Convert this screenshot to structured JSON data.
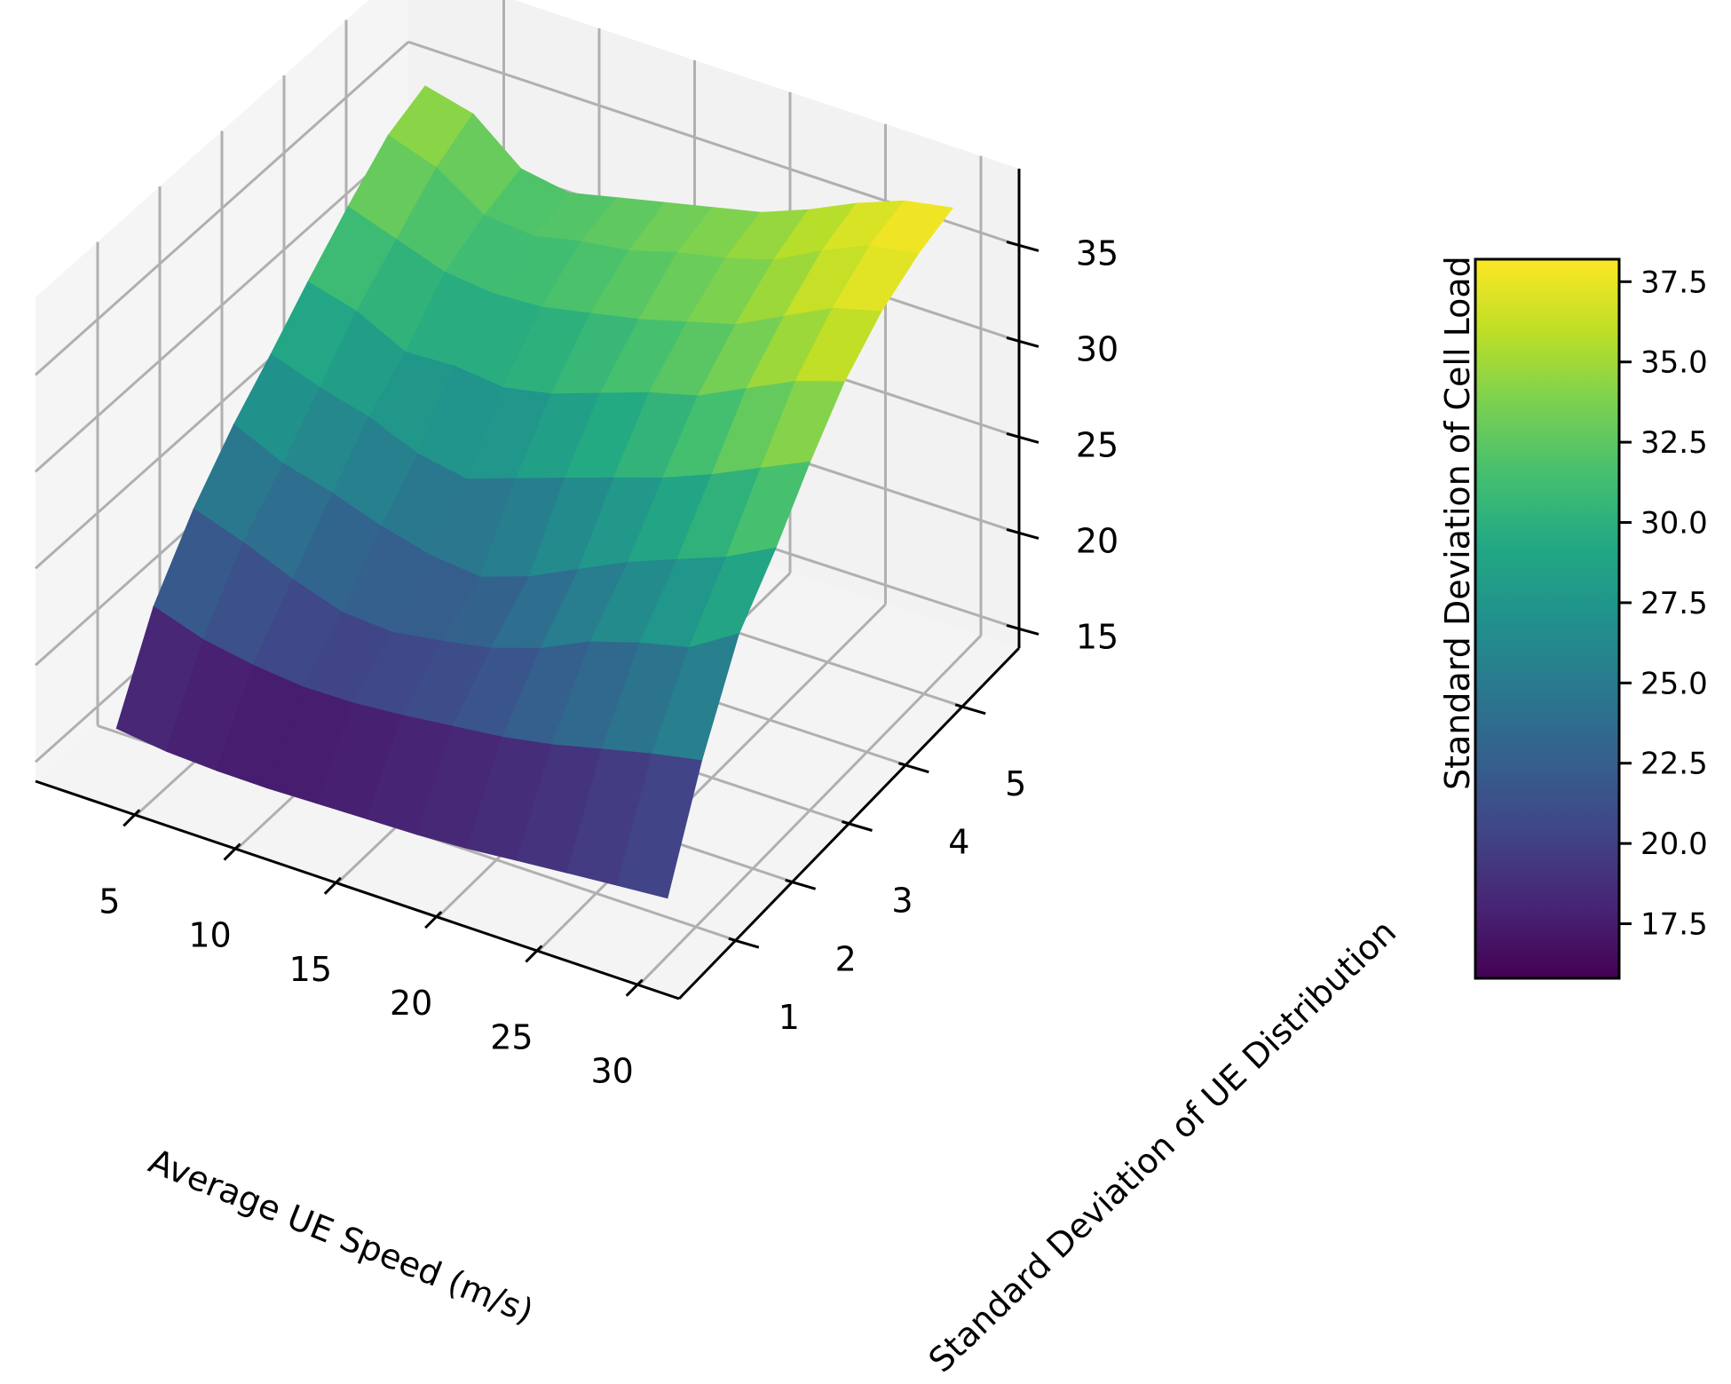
{
  "chart_data": {
    "type": "surface3d",
    "title": "",
    "xlabel": "Average UE Speed (m/s)",
    "ylabel": "Standard Deviation of UE Distribution",
    "zlabel": "Standard Deviation of Cell Load",
    "x_ticks": [
      "5",
      "10",
      "15",
      "20",
      "25",
      "30"
    ],
    "y_ticks": [
      "1",
      "2",
      "3",
      "4",
      "5"
    ],
    "z_ticks": [
      "15",
      "20",
      "25",
      "30",
      "35"
    ],
    "xlim": [
      0,
      32
    ],
    "ylim": [
      0,
      6
    ],
    "zlim": [
      14,
      39
    ],
    "colormap": "viridis",
    "colorbar": {
      "label": "Standard Deviation of Cell Load",
      "ticks": [
        "17.5",
        "20.0",
        "22.5",
        "25.0",
        "27.5",
        "30.0",
        "32.5",
        "35.0",
        "37.5"
      ],
      "range": [
        15.8,
        38.2
      ]
    },
    "x": [
      2.5,
      5,
      7.5,
      10,
      12.5,
      15,
      17.5,
      20,
      22.5,
      25,
      27.5,
      30
    ],
    "y": [
      0.5,
      1.1,
      1.75,
      2.4,
      3.0,
      3.6,
      4.25,
      4.9,
      5.5
    ],
    "z": [
      [
        16.2,
        15.9,
        15.8,
        15.8,
        15.9,
        16.0,
        16.1,
        16.3,
        16.6,
        16.9,
        17.2,
        17.5
      ],
      [
        20.8,
        20.0,
        19.6,
        19.4,
        19.5,
        19.8,
        20.2,
        20.6,
        21.2,
        22.0,
        22.8,
        23.5
      ],
      [
        24.0,
        23.2,
        22.2,
        21.4,
        21.3,
        21.8,
        22.4,
        23.4,
        24.8,
        25.8,
        26.6,
        28.5
      ],
      [
        26.5,
        25.4,
        24.8,
        24.0,
        23.4,
        23.2,
        24.2,
        25.6,
        27.0,
        28.2,
        29.4,
        31.0
      ],
      [
        28.4,
        27.6,
        27.0,
        26.0,
        25.6,
        26.6,
        27.6,
        28.6,
        29.6,
        30.8,
        32.2,
        33.6
      ],
      [
        30.4,
        29.8,
        28.6,
        28.8,
        28.6,
        29.2,
        30.2,
        31.2,
        32.0,
        33.4,
        34.8,
        35.8
      ],
      [
        32.4,
        31.6,
        30.8,
        30.6,
        30.8,
        31.4,
        32.0,
        32.8,
        33.6,
        35.0,
        36.4,
        37.2
      ],
      [
        34.2,
        33.4,
        31.8,
        31.6,
        32.2,
        32.6,
        33.4,
        34.0,
        34.8,
        36.2,
        37.4,
        37.9
      ],
      [
        35.0,
        34.4,
        32.4,
        32.0,
        32.6,
        33.2,
        33.8,
        34.4,
        35.4,
        36.6,
        37.6,
        38.1
      ]
    ],
    "grid": true,
    "legend": null
  },
  "labels": {
    "xlabel": "Average UE Speed (m/s)",
    "ylabel": "Standard Deviation of UE Distribution",
    "zlabel": "Standard Deviation of Cell Load",
    "colorbar_label": "Standard Deviation of Cell Load"
  },
  "colors": {
    "pane_left": "#f5f5f5",
    "pane_back": "#f2f2f2",
    "pane_floor": "#f4f4f4",
    "grid": "#b0b0b0",
    "axis": "#000000"
  }
}
